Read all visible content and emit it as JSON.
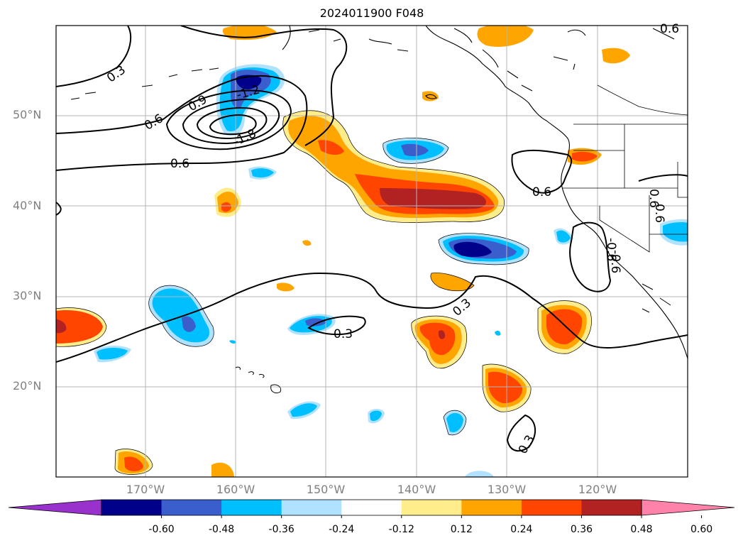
{
  "title": "2024011900 F048",
  "lat_labels": [
    "50°N",
    "40°N",
    "30°N",
    "20°N"
  ],
  "lon_labels": [
    "170°W",
    "160°W",
    "150°W",
    "140°W",
    "130°W",
    "120°W"
  ],
  "contour_labels": [
    "0.3",
    "0.9",
    "0.6",
    "-1.2",
    "-1.8",
    "0.6",
    "0.6",
    "0.6",
    "-0.6",
    "0.3",
    "0.3",
    "0.3",
    "0.6",
    "0.6",
    "-0.6"
  ],
  "colorbar": {
    "ticks": [
      "-0.60",
      "-0.48",
      "-0.36",
      "-0.24",
      "-0.12",
      "0.12",
      "0.24",
      "0.36",
      "0.48",
      "0.60"
    ],
    "colors": [
      "#9932cc",
      "#00008b",
      "#3a5fcd",
      "#00bfff",
      "#b0e2ff",
      "#ffffff",
      "#ffec8b",
      "#ffa500",
      "#ff4500",
      "#b22222",
      "#ff82ab"
    ]
  }
}
